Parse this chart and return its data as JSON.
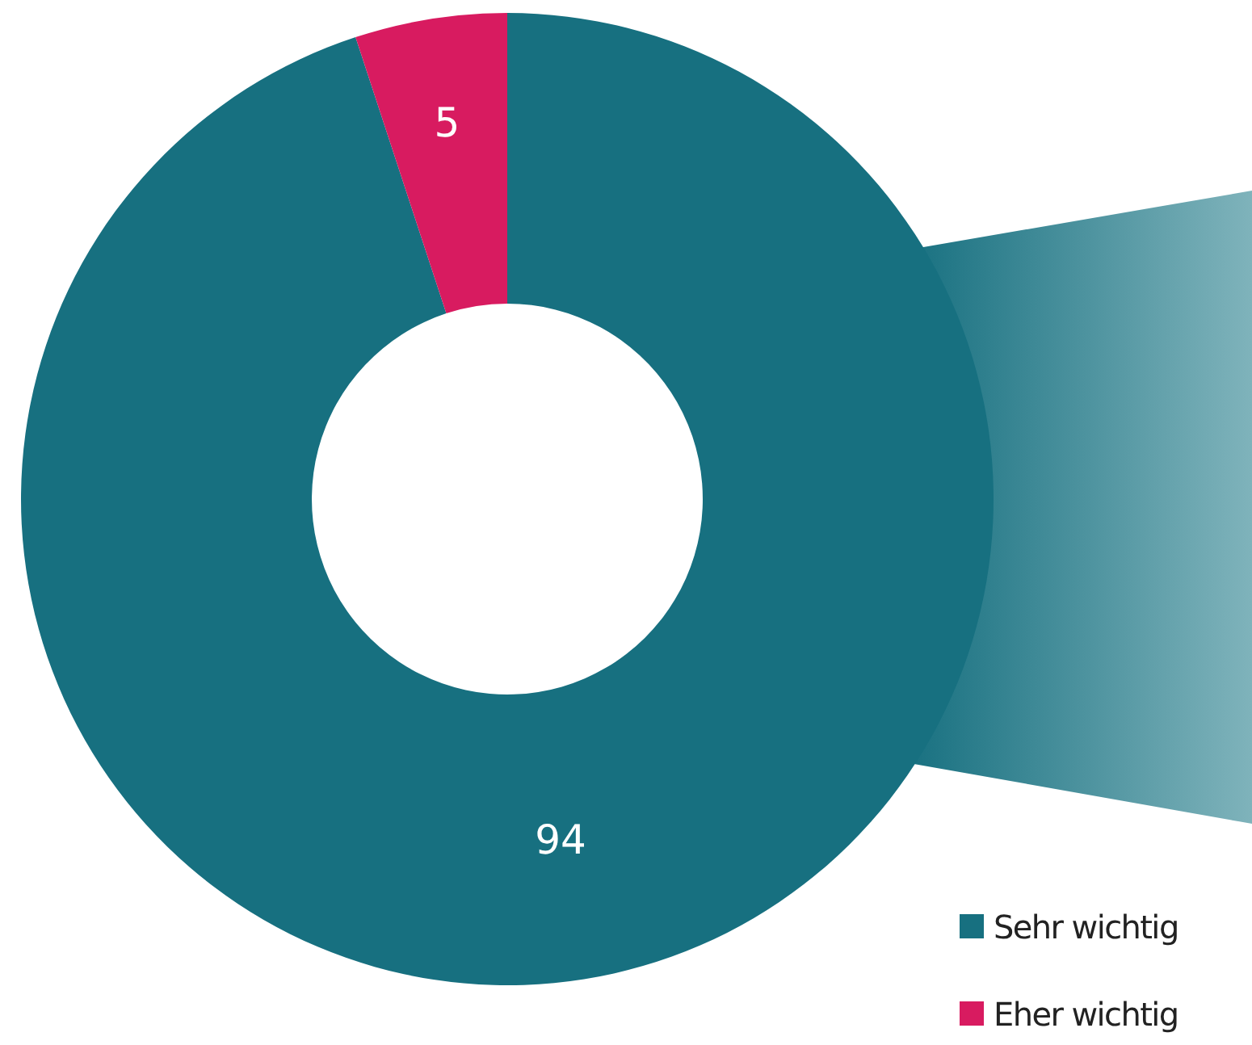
{
  "chart_data": {
    "type": "donut",
    "categories": [
      "Sehr wichtig",
      "Eher wichtig"
    ],
    "values": [
      94,
      5
    ],
    "colors": [
      "#177080",
      "#d81b60"
    ],
    "data_labels": true,
    "legend": "bottom right"
  }
}
